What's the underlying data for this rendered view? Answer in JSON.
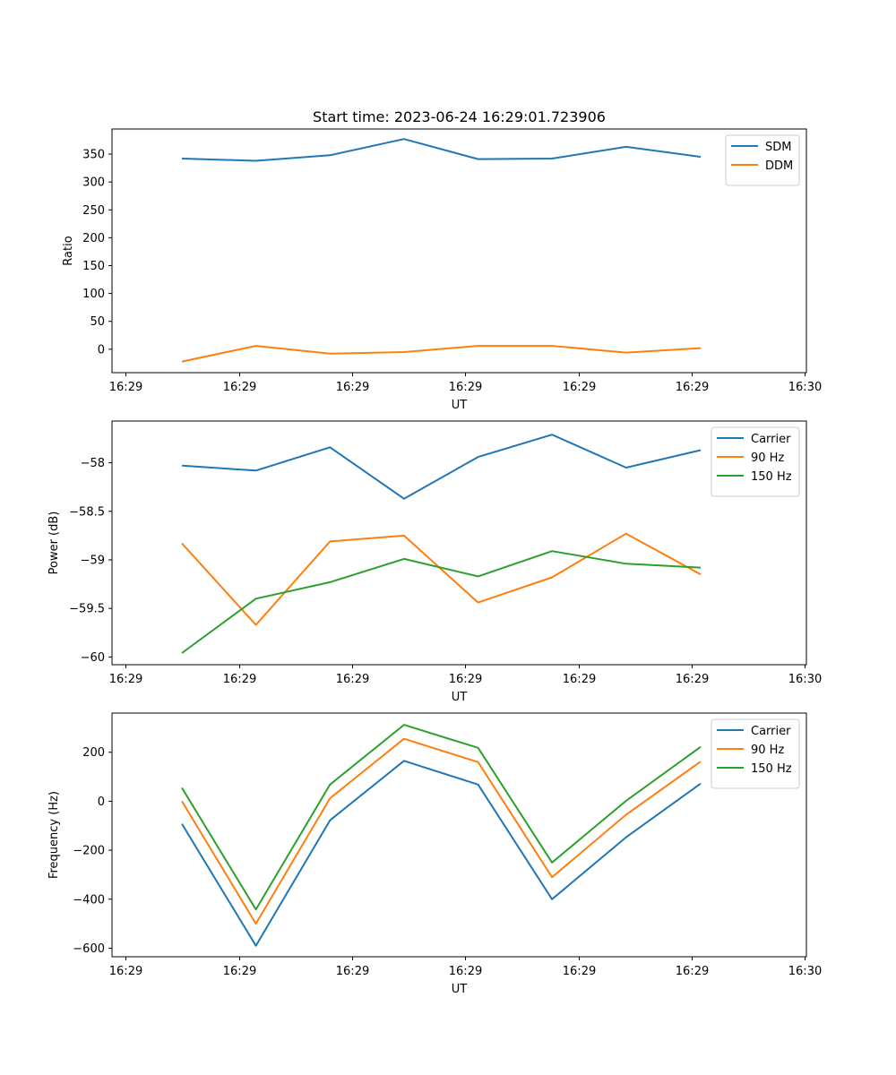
{
  "chart_data": [
    {
      "type": "line",
      "title": "Start time: 2023-06-24 16:29:01.723906",
      "xlabel": "UT",
      "ylabel": "Ratio",
      "xtick_labels": [
        "16:29",
        "16:29",
        "16:29",
        "16:29",
        "16:29",
        "16:29",
        "16:30"
      ],
      "ylim": [
        -42,
        395
      ],
      "yticks": [
        0,
        50,
        100,
        150,
        200,
        250,
        300,
        350
      ],
      "legend": "top-right",
      "series": [
        {
          "name": "SDM",
          "color": "#1f77b4",
          "values": [
            342,
            338,
            348,
            377,
            341,
            342,
            363,
            345
          ]
        },
        {
          "name": "DDM",
          "color": "#ff7f0e",
          "values": [
            -22,
            6,
            -8,
            -5,
            6,
            6,
            -6,
            2
          ]
        }
      ]
    },
    {
      "type": "line",
      "title": "",
      "xlabel": "UT",
      "ylabel": "Power (dB)",
      "xtick_labels": [
        "16:29",
        "16:29",
        "16:29",
        "16:29",
        "16:29",
        "16:29",
        "16:30"
      ],
      "ylim": [
        -60.08,
        -57.57
      ],
      "yticks": [
        -60.0,
        -59.5,
        -59.0,
        -58.5,
        -58.0
      ],
      "legend": "top-right",
      "series": [
        {
          "name": "Carrier",
          "color": "#1f77b4",
          "values": [
            -58.03,
            -58.08,
            -57.84,
            -58.37,
            -57.94,
            -57.71,
            -58.05,
            -57.87
          ]
        },
        {
          "name": "90 Hz",
          "color": "#ff7f0e",
          "values": [
            -58.83,
            -59.67,
            -58.81,
            -58.75,
            -59.44,
            -59.18,
            -58.73,
            -59.15
          ]
        },
        {
          "name": "150 Hz",
          "color": "#2ca02c",
          "values": [
            -59.96,
            -59.4,
            -59.23,
            -58.99,
            -59.17,
            -58.91,
            -59.04,
            -59.08
          ]
        }
      ]
    },
    {
      "type": "line",
      "title": "",
      "xlabel": "UT",
      "ylabel": "Frequency (Hz)",
      "xtick_labels": [
        "16:29",
        "16:29",
        "16:29",
        "16:29",
        "16:29",
        "16:29",
        "16:30"
      ],
      "ylim": [
        -635,
        360
      ],
      "yticks": [
        -600,
        -400,
        -200,
        0,
        200
      ],
      "legend": "top-right",
      "series": [
        {
          "name": "Carrier",
          "color": "#1f77b4",
          "values": [
            -92,
            -590,
            -78,
            165,
            68,
            -400,
            -147,
            72
          ]
        },
        {
          "name": "90 Hz",
          "color": "#ff7f0e",
          "values": [
            0,
            -500,
            12,
            255,
            160,
            -310,
            -55,
            162
          ]
        },
        {
          "name": "150 Hz",
          "color": "#2ca02c",
          "values": [
            55,
            -442,
            68,
            312,
            218,
            -250,
            2,
            222
          ]
        }
      ]
    }
  ]
}
